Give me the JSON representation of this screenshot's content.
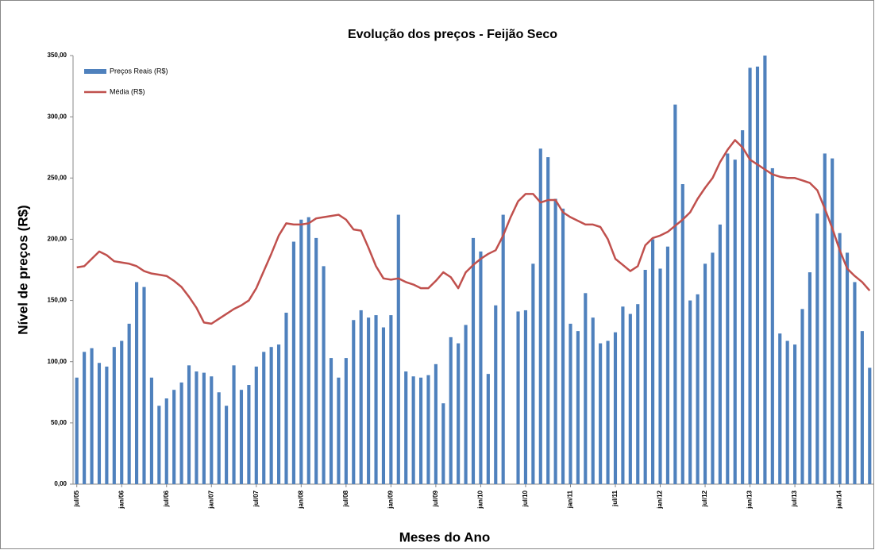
{
  "chart_data": {
    "type": "bar_line",
    "title": "Evolução dos preços - Feijão Seco",
    "x_label": "Meses do Ano",
    "y_label": "Nível de preços (R$)",
    "categories": [
      "jul/05",
      null,
      null,
      null,
      null,
      null,
      "jan/06",
      null,
      null,
      null,
      null,
      null,
      "jul/06",
      null,
      null,
      null,
      null,
      null,
      "jan/07",
      null,
      null,
      null,
      null,
      null,
      "jul/07",
      null,
      null,
      null,
      null,
      null,
      "jan/08",
      null,
      null,
      null,
      null,
      null,
      "jul/08",
      null,
      null,
      null,
      null,
      null,
      "jan/09",
      null,
      null,
      null,
      null,
      null,
      "jul/09",
      null,
      null,
      null,
      null,
      null,
      "jan/10",
      null,
      null,
      null,
      null,
      null,
      "jul/10",
      null,
      null,
      null,
      null,
      null,
      "jan/11",
      null,
      null,
      null,
      null,
      null,
      "jul/11",
      null,
      null,
      null,
      null,
      null,
      "jan/12",
      null,
      null,
      null,
      null,
      null,
      "jul/12",
      null,
      null,
      null,
      null,
      null,
      "jan/13",
      null,
      null,
      null,
      null,
      null,
      "jul/13",
      null,
      null,
      null,
      null,
      null,
      "jan/14",
      null,
      null,
      null,
      null
    ],
    "series": [
      {
        "name": "Preços Reais (R$)",
        "type": "bar",
        "color": "#4f81bd",
        "values": [
          87,
          108,
          111,
          99,
          96,
          112,
          117,
          131,
          165,
          161,
          87,
          64,
          70,
          77,
          83,
          97,
          92,
          91,
          88,
          75,
          64,
          97,
          77,
          81,
          96,
          108,
          112,
          114,
          140,
          198,
          216,
          218,
          201,
          178,
          103,
          87,
          103,
          134,
          142,
          136,
          138,
          128,
          138,
          220,
          92,
          88,
          87,
          89,
          98,
          66,
          120,
          115,
          130,
          201,
          190,
          90,
          146,
          220,
          null,
          141,
          142,
          180,
          274,
          267,
          233,
          225,
          131,
          125,
          156,
          136,
          115,
          117,
          124,
          145,
          139,
          147,
          175,
          200,
          176,
          194,
          310,
          245,
          150,
          155,
          180,
          189,
          212,
          270,
          265,
          289,
          340,
          341,
          350,
          258,
          123,
          117,
          114,
          143,
          173,
          221,
          270,
          266,
          205,
          189,
          165,
          125,
          95
        ]
      },
      {
        "name": "Média (R$)",
        "type": "line",
        "color": "#c0504d",
        "values": [
          177,
          178,
          184,
          190,
          187,
          182,
          181,
          180,
          178,
          174,
          172,
          171,
          170,
          166,
          161,
          153,
          144,
          132,
          131,
          135,
          139,
          143,
          146,
          150,
          160,
          174,
          188,
          203,
          213,
          212,
          212,
          213,
          217,
          218,
          219,
          220,
          216,
          208,
          207,
          193,
          178,
          168,
          167,
          168,
          165,
          163,
          160,
          160,
          166,
          173,
          169,
          160,
          173,
          179,
          184,
          188,
          191,
          203,
          218,
          231,
          237,
          237,
          230,
          232,
          232,
          222,
          218,
          215,
          212,
          212,
          210,
          200,
          184,
          179,
          174,
          178,
          195,
          201,
          203,
          206,
          211,
          216,
          222,
          233,
          242,
          250,
          263,
          273,
          281,
          275,
          265,
          261,
          257,
          253,
          251,
          250,
          250,
          248,
          246,
          240,
          225,
          209,
          191,
          176,
          170,
          165,
          158
        ]
      }
    ],
    "ylim": [
      0,
      350
    ],
    "yticks": [
      {
        "value": 0,
        "label": "0,00"
      },
      {
        "value": 50,
        "label": "50,00"
      },
      {
        "value": 100,
        "label": "100,00"
      },
      {
        "value": 150,
        "label": "150,00"
      },
      {
        "value": 200,
        "label": "200,00"
      },
      {
        "value": 250,
        "label": "250,00"
      },
      {
        "value": 300,
        "label": "300,00"
      },
      {
        "value": 350,
        "label": "350,00"
      }
    ],
    "grid": false,
    "legend": "top-left"
  }
}
